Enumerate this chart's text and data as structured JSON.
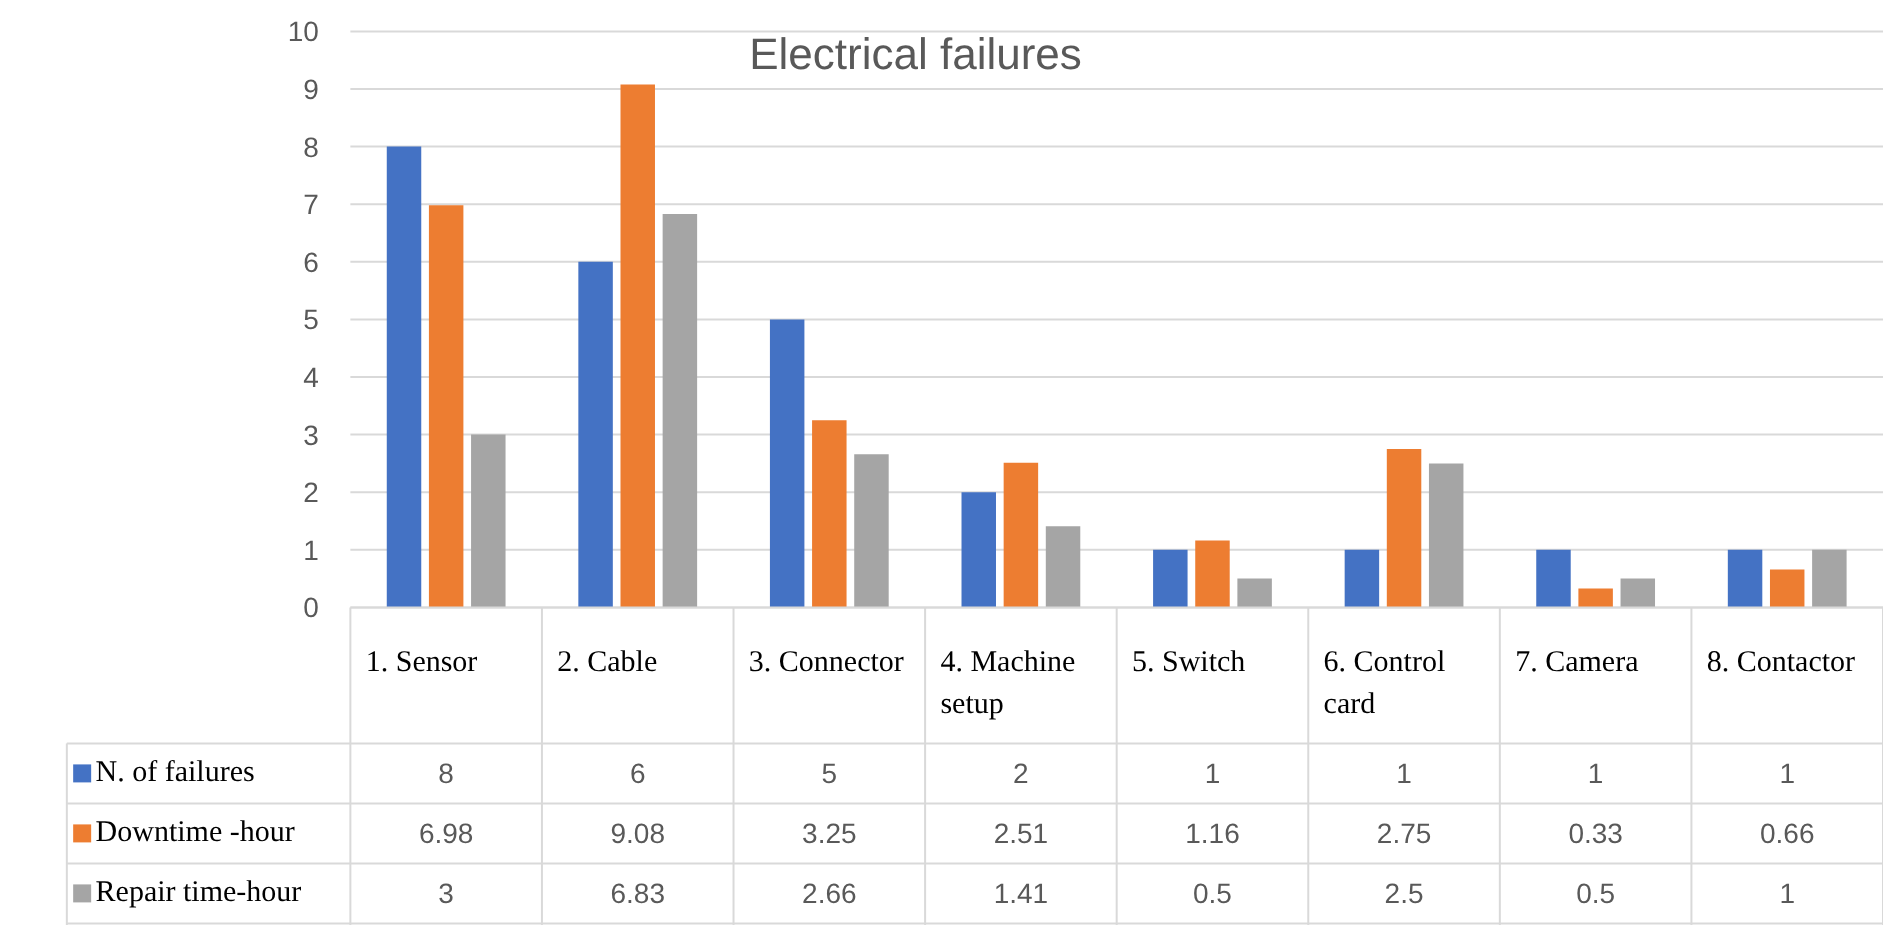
{
  "chart_data": {
    "type": "bar",
    "title": "Electrical failures",
    "categories": [
      "1. Sensor",
      "2. Cable",
      "3. Connector",
      "4. Machine setup",
      "5. Switch",
      "6. Control card",
      "7. Camera",
      "8. Contactor"
    ],
    "series": [
      {
        "name": "N. of failures",
        "color": "#4472c4",
        "values": [
          8,
          6,
          5,
          2,
          1,
          1,
          1,
          1
        ]
      },
      {
        "name": "Downtime -hour",
        "color": "#ed7d31",
        "values": [
          6.98,
          9.08,
          3.25,
          2.51,
          1.16,
          2.75,
          0.33,
          0.66
        ]
      },
      {
        "name": "Repair time-hour",
        "color": "#a5a5a5",
        "values": [
          3,
          6.83,
          2.66,
          1.41,
          0.5,
          2.5,
          0.5,
          1
        ]
      }
    ],
    "ylim": [
      0,
      10
    ],
    "yticks": [
      0,
      1,
      2,
      3,
      4,
      5,
      6,
      7,
      8,
      9,
      10
    ],
    "grid": "y",
    "legend": "bottom",
    "data_labels": true
  }
}
